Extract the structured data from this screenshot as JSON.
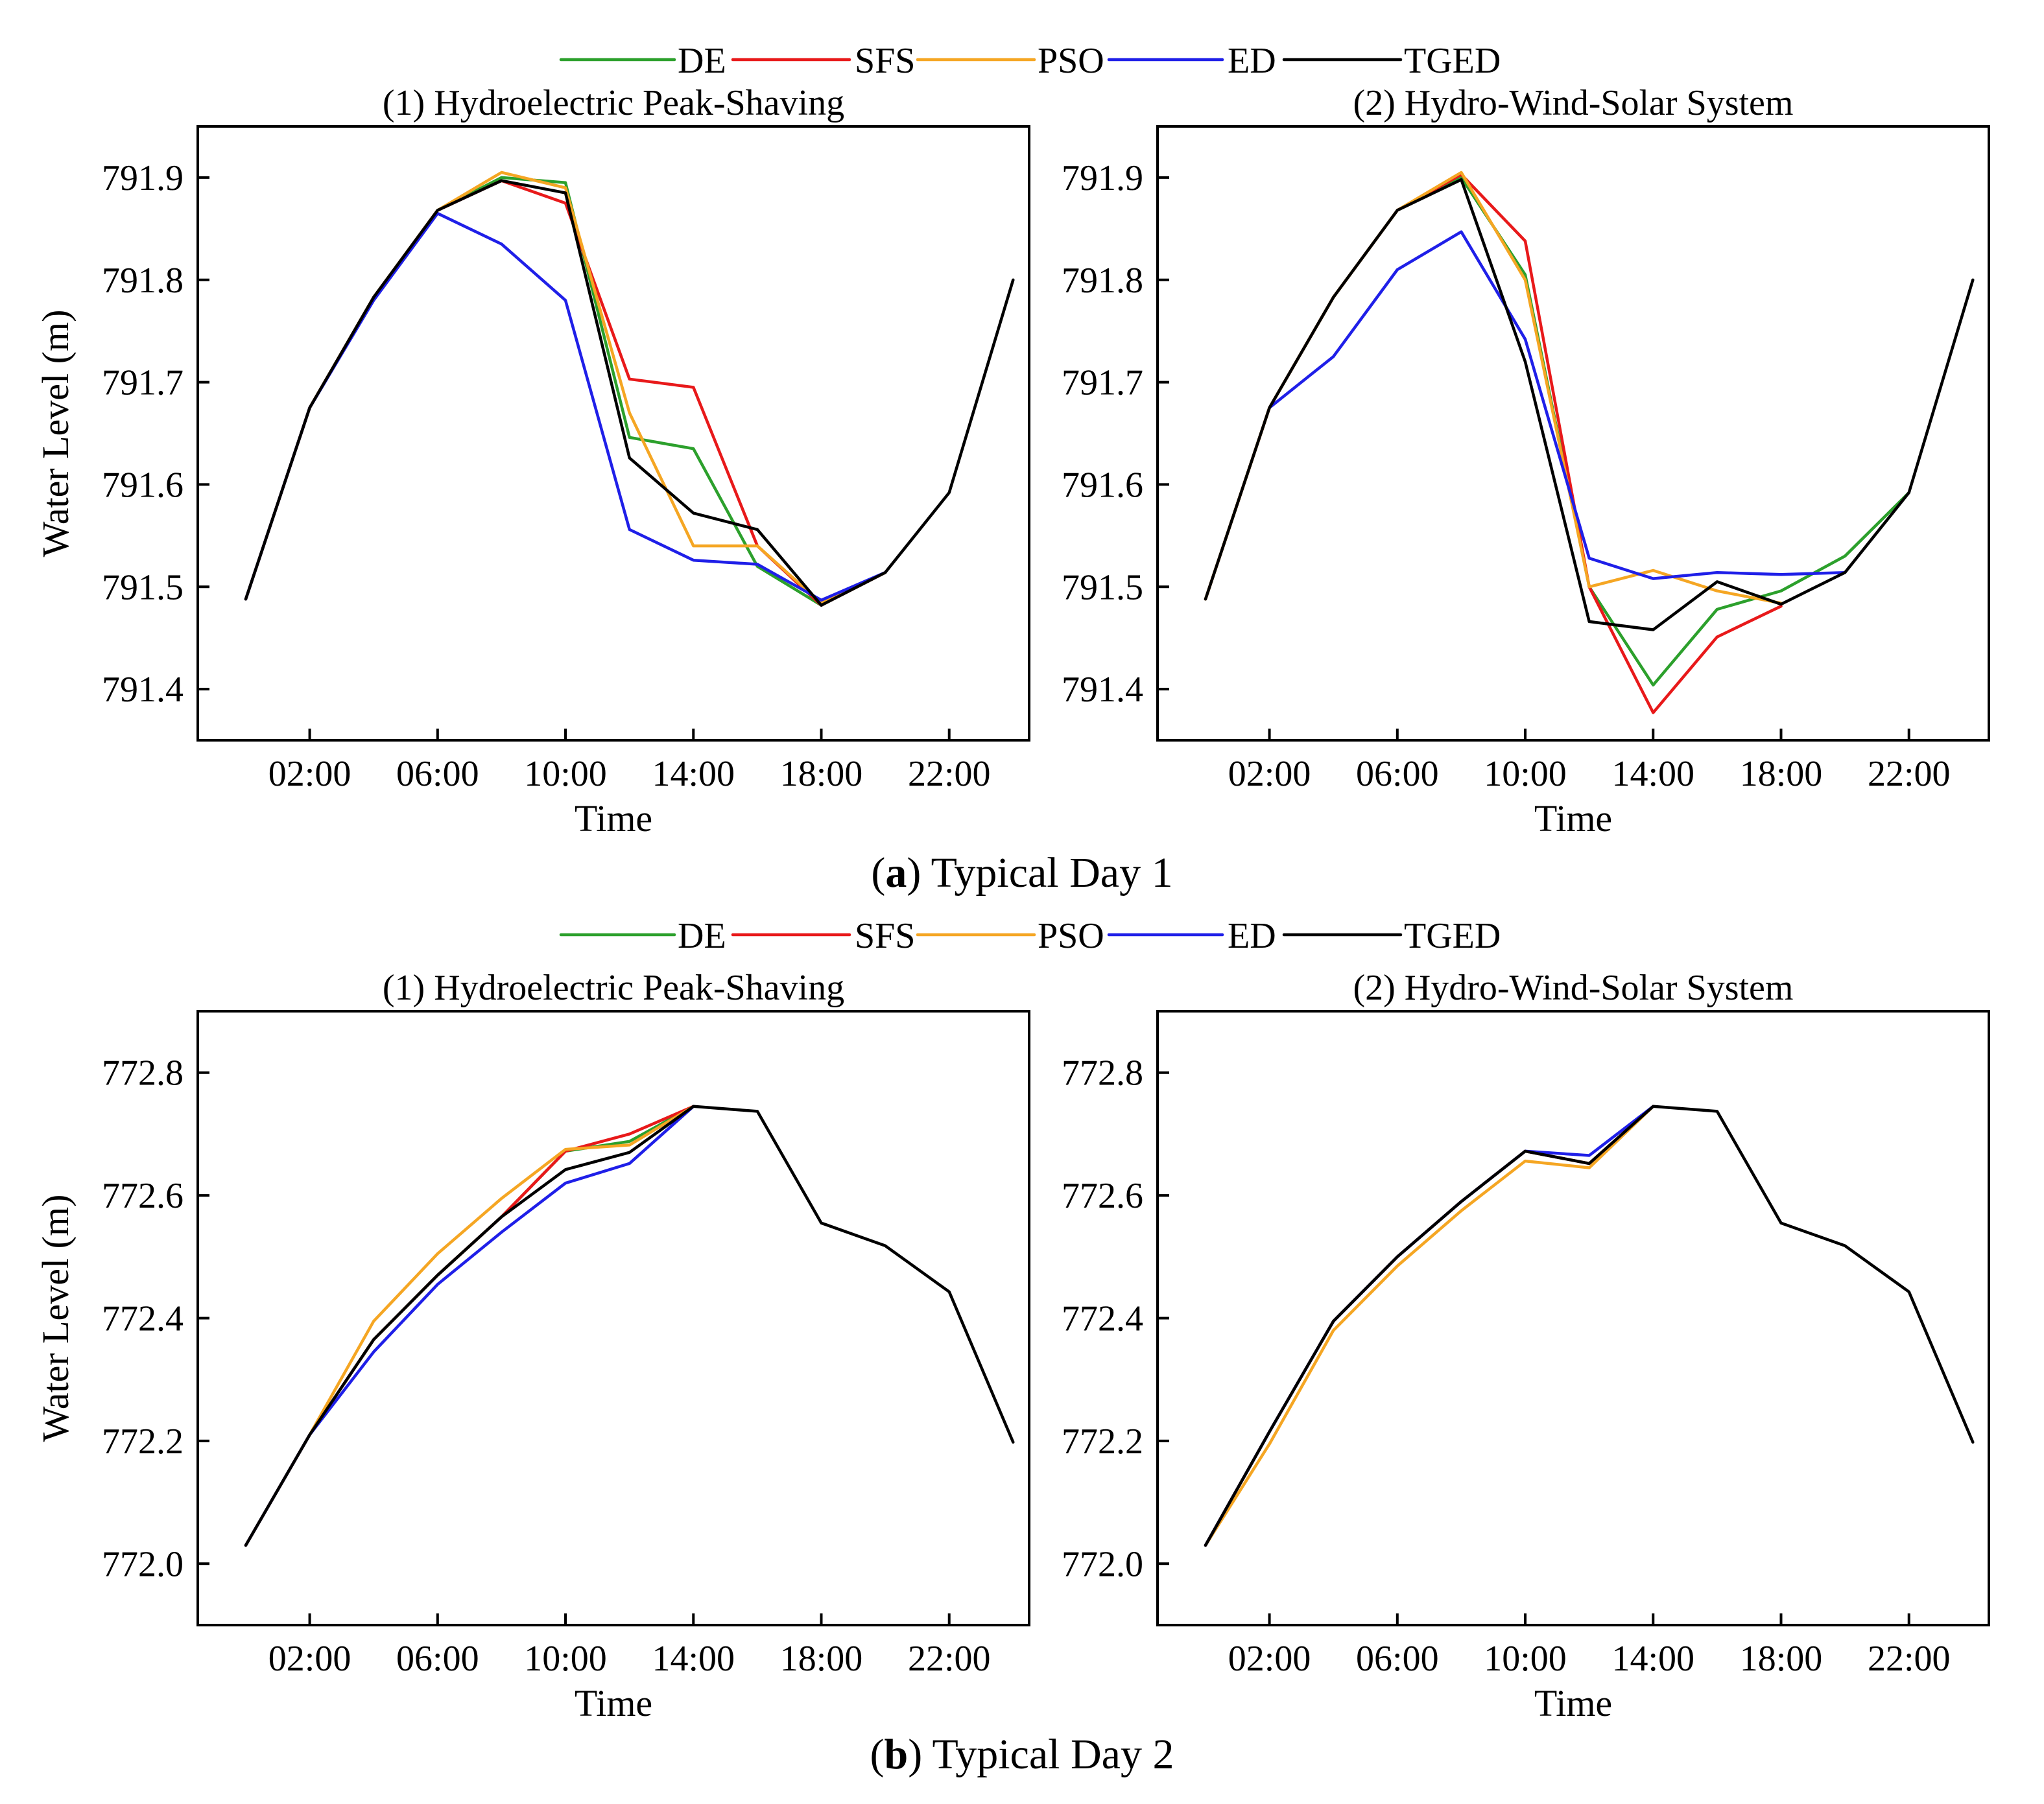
{
  "legend": [
    {
      "name": "DE",
      "color": "#2ca02c"
    },
    {
      "name": "SFS",
      "color": "#e8191a"
    },
    {
      "name": "PSO",
      "color": "#f5a623"
    },
    {
      "name": "ED",
      "color": "#1f1fe8"
    },
    {
      "name": "TGED",
      "color": "#000000"
    }
  ],
  "captions": [
    {
      "letter": "a",
      "text": " Typical Day 1"
    },
    {
      "letter": "b",
      "text": " Typical Day 2"
    }
  ],
  "chart_data": [
    {
      "type": "line",
      "title": "(1) Hydroelectric Peak-Shaving",
      "group": "Typical Day 1",
      "xlabel": "Time",
      "ylabel": "Water Level (m)",
      "x_hours": [
        0,
        2,
        4,
        6,
        8,
        10,
        12,
        14,
        16,
        18,
        20,
        22,
        24
      ],
      "xlim": [
        -1.5,
        24.5
      ],
      "ylim": [
        791.35,
        791.95
      ],
      "xticks": [
        2,
        6,
        10,
        14,
        18,
        22
      ],
      "xtick_labels": [
        "02:00",
        "06:00",
        "10:00",
        "14:00",
        "18:00",
        "22:00"
      ],
      "yticks": [
        791.4,
        791.5,
        791.6,
        791.7,
        791.8,
        791.9
      ],
      "ytick_labels": [
        "791.4",
        "791.5",
        "791.6",
        "791.7",
        "791.8",
        "791.9"
      ],
      "series": [
        {
          "name": "DE",
          "values": [
            791.488,
            791.675,
            791.783,
            791.868,
            791.9,
            791.895,
            791.646,
            791.635,
            791.52,
            791.482,
            791.514,
            null,
            null
          ]
        },
        {
          "name": "SFS",
          "values": [
            791.488,
            791.675,
            791.783,
            791.868,
            791.897,
            791.875,
            791.703,
            791.695,
            791.54,
            791.482,
            791.514,
            null,
            null
          ]
        },
        {
          "name": "PSO",
          "values": [
            791.488,
            791.675,
            791.783,
            791.868,
            791.905,
            791.89,
            791.67,
            791.54,
            791.54,
            791.484,
            791.514,
            null,
            null
          ]
        },
        {
          "name": "ED",
          "values": [
            791.488,
            791.675,
            791.78,
            791.865,
            791.835,
            791.78,
            791.556,
            791.526,
            791.522,
            791.487,
            791.514,
            null,
            null
          ]
        },
        {
          "name": "TGED",
          "values": [
            791.488,
            791.675,
            791.783,
            791.868,
            791.897,
            791.885,
            791.626,
            791.572,
            791.556,
            791.482,
            791.514,
            791.592,
            791.8
          ]
        }
      ]
    },
    {
      "type": "line",
      "title": "(2) Hydro-Wind-Solar System",
      "group": "Typical Day 1",
      "xlabel": "Time",
      "ylabel": "",
      "x_hours": [
        0,
        2,
        4,
        6,
        8,
        10,
        12,
        14,
        16,
        18,
        20,
        22,
        24
      ],
      "xlim": [
        -1.5,
        24.5
      ],
      "ylim": [
        791.35,
        791.95
      ],
      "xticks": [
        2,
        6,
        10,
        14,
        18,
        22
      ],
      "xtick_labels": [
        "02:00",
        "06:00",
        "10:00",
        "14:00",
        "18:00",
        "22:00"
      ],
      "yticks": [
        791.4,
        791.5,
        791.6,
        791.7,
        791.8,
        791.9
      ],
      "ytick_labels": [
        "791.4",
        "791.5",
        "791.6",
        "791.7",
        "791.8",
        "791.9"
      ],
      "series": [
        {
          "name": "DE",
          "values": [
            791.488,
            791.675,
            791.783,
            791.868,
            791.9,
            791.805,
            791.5,
            791.404,
            791.478,
            791.496,
            791.53,
            791.592,
            null
          ]
        },
        {
          "name": "SFS",
          "values": [
            791.488,
            791.675,
            791.783,
            791.868,
            791.903,
            791.838,
            791.5,
            791.377,
            791.451,
            791.481,
            null,
            null,
            null
          ]
        },
        {
          "name": "PSO",
          "values": [
            791.488,
            791.675,
            791.783,
            791.868,
            791.905,
            791.8,
            791.5,
            791.516,
            791.496,
            791.484,
            null,
            null,
            null
          ]
        },
        {
          "name": "ED",
          "values": [
            null,
            791.675,
            791.725,
            791.81,
            791.847,
            791.742,
            791.528,
            791.508,
            791.514,
            791.512,
            791.514,
            null,
            null
          ]
        },
        {
          "name": "TGED",
          "values": [
            791.488,
            791.675,
            791.783,
            791.868,
            791.898,
            791.72,
            791.466,
            791.458,
            791.505,
            791.483,
            791.514,
            791.592,
            791.8
          ]
        }
      ]
    },
    {
      "type": "line",
      "title": "(1) Hydroelectric Peak-Shaving",
      "group": "Typical Day 2",
      "xlabel": "Time",
      "ylabel": "Water Level (m)",
      "x_hours": [
        0,
        2,
        4,
        6,
        8,
        10,
        12,
        14,
        16,
        18,
        20,
        22,
        24
      ],
      "xlim": [
        -1.5,
        24.5
      ],
      "ylim": [
        771.9,
        772.9
      ],
      "xticks": [
        2,
        6,
        10,
        14,
        18,
        22
      ],
      "xtick_labels": [
        "02:00",
        "06:00",
        "10:00",
        "14:00",
        "18:00",
        "22:00"
      ],
      "yticks": [
        772.0,
        772.2,
        772.4,
        772.6,
        772.8
      ],
      "ytick_labels": [
        "772.0",
        "772.2",
        "772.4",
        "772.6",
        "772.8"
      ],
      "series": [
        {
          "name": "DE",
          "values": [
            772.03,
            772.21,
            772.365,
            772.47,
            772.565,
            772.672,
            772.688,
            772.745,
            null,
            null,
            null,
            null,
            null
          ]
        },
        {
          "name": "SFS",
          "values": [
            772.03,
            772.21,
            772.365,
            772.47,
            772.565,
            772.672,
            772.7,
            772.745,
            null,
            null,
            null,
            null,
            null
          ]
        },
        {
          "name": "PSO",
          "values": [
            772.03,
            772.21,
            772.395,
            772.505,
            772.595,
            772.675,
            772.682,
            772.745,
            null,
            null,
            null,
            null,
            null
          ]
        },
        {
          "name": "ED",
          "values": [
            772.03,
            772.21,
            772.345,
            772.455,
            772.54,
            772.62,
            772.652,
            772.745,
            null,
            null,
            null,
            null,
            null
          ]
        },
        {
          "name": "TGED",
          "values": [
            772.03,
            772.21,
            772.365,
            772.47,
            772.565,
            772.642,
            772.67,
            772.745,
            772.737,
            772.555,
            772.518,
            772.443,
            772.198
          ]
        }
      ]
    },
    {
      "type": "line",
      "title": "(2) Hydro-Wind-Solar System",
      "group": "Typical Day 2",
      "xlabel": "Time",
      "ylabel": "",
      "x_hours": [
        0,
        2,
        4,
        6,
        8,
        10,
        12,
        14,
        16,
        18,
        20,
        22,
        24
      ],
      "xlim": [
        -1.5,
        24.5
      ],
      "ylim": [
        771.9,
        772.9
      ],
      "xticks": [
        2,
        6,
        10,
        14,
        18,
        22
      ],
      "xtick_labels": [
        "02:00",
        "06:00",
        "10:00",
        "14:00",
        "18:00",
        "22:00"
      ],
      "yticks": [
        772.0,
        772.2,
        772.4,
        772.6,
        772.8
      ],
      "ytick_labels": [
        "772.0",
        "772.2",
        "772.4",
        "772.6",
        "772.8"
      ],
      "series": [
        {
          "name": "DE",
          "values": [
            772.03,
            772.215,
            772.395,
            772.5,
            772.59,
            772.672,
            772.652,
            772.745,
            null,
            null,
            null,
            null,
            null
          ]
        },
        {
          "name": "SFS",
          "values": [
            772.03,
            772.215,
            772.395,
            772.5,
            772.59,
            772.672,
            772.652,
            772.745,
            null,
            null,
            null,
            null,
            null
          ]
        },
        {
          "name": "PSO",
          "values": [
            772.03,
            772.195,
            772.38,
            772.485,
            772.575,
            772.656,
            772.645,
            772.745,
            null,
            null,
            null,
            null,
            null
          ]
        },
        {
          "name": "ED",
          "values": [
            772.03,
            772.215,
            772.395,
            772.5,
            772.59,
            772.672,
            772.665,
            772.745,
            null,
            null,
            null,
            null,
            null
          ]
        },
        {
          "name": "TGED",
          "values": [
            772.03,
            772.215,
            772.395,
            772.5,
            772.59,
            772.672,
            772.652,
            772.745,
            772.737,
            772.555,
            772.518,
            772.443,
            772.198
          ]
        }
      ]
    }
  ]
}
